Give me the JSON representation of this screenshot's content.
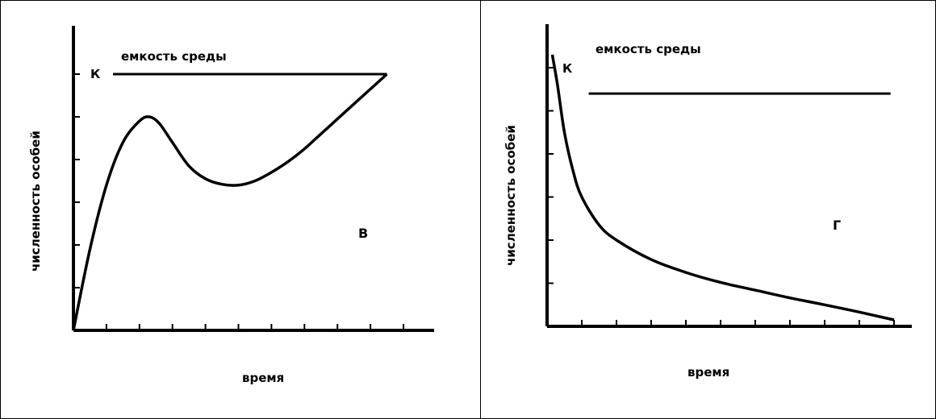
{
  "chart_data": [
    {
      "type": "line",
      "xlabel": "время",
      "ylabel": "численность особей",
      "capacity_label": "емкость среды",
      "capacity_symbol": "К",
      "panel_letter": "В",
      "x_tick_count": 10,
      "y_tick_count": 6,
      "xlim": [
        0,
        10
      ],
      "ylim": [
        0,
        6
      ],
      "capacity_value": 6,
      "capacity_x": [
        1.2,
        9.5
      ],
      "x": [
        0,
        0.5,
        1.0,
        1.5,
        2.0,
        2.3,
        2.6,
        3.0,
        3.5,
        4.0,
        4.5,
        5.0,
        5.5,
        6.0,
        6.5,
        7.0,
        7.5,
        8.0,
        8.5,
        9.0,
        9.5
      ],
      "y": [
        0,
        1.9,
        3.4,
        4.4,
        4.9,
        5.0,
        4.85,
        4.4,
        3.85,
        3.55,
        3.42,
        3.4,
        3.5,
        3.7,
        3.95,
        4.25,
        4.6,
        4.95,
        5.3,
        5.65,
        6.0
      ],
      "line_color": "#000000"
    },
    {
      "type": "line",
      "xlabel": "время",
      "ylabel": "численность особей",
      "capacity_label": "емкость среды",
      "capacity_symbol": "К",
      "panel_letter": "Г",
      "x_tick_count": 10,
      "y_tick_count": 6,
      "xlim": [
        0,
        10
      ],
      "ylim": [
        0,
        6
      ],
      "capacity_value": 5.4,
      "capacity_x": [
        1.2,
        9.9
      ],
      "x": [
        0.15,
        0.3,
        0.5,
        0.75,
        1.0,
        1.5,
        2.0,
        3.0,
        4.0,
        5.0,
        6.0,
        7.0,
        8.0,
        9.0,
        10.0
      ],
      "y": [
        6.3,
        5.6,
        4.5,
        3.6,
        3.0,
        2.35,
        2.0,
        1.55,
        1.25,
        1.02,
        0.84,
        0.66,
        0.5,
        0.33,
        0.15
      ],
      "line_color": "#000000"
    }
  ]
}
